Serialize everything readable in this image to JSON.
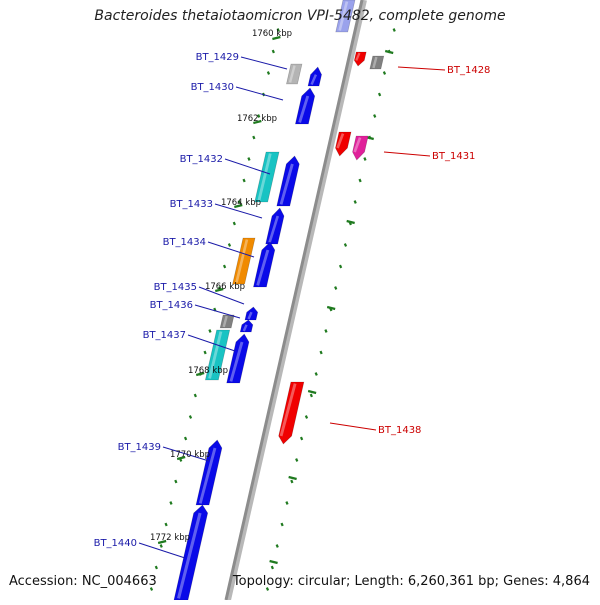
{
  "title": "Bacteroides thetaiotaomicron VPI-5482, complete genome",
  "footer": {
    "accession": "Accession: NC_004663",
    "topology": "Topology: circular; Length: 6,260,361 bp; Genes: 4,864"
  },
  "colors": {
    "backbone": "#8c8c8c",
    "tick": "#1f7a1f",
    "left_label": "#1a1aa8",
    "right_label": "#cc0000",
    "blue": "#0a0ae8",
    "cyan": "#19c3c3",
    "orange": "#f08a00",
    "red": "#f00000",
    "magenta": "#e0209a",
    "gray": "#808080",
    "light_gray": "#b4b4b4",
    "lavender": "#9aa2ec"
  },
  "scale_labels": [
    "1760 kbp",
    "1762 kbp",
    "1764 kbp",
    "1766 kbp",
    "1768 kbp",
    "1770 kbp",
    "1772 kbp"
  ],
  "genes": [
    {
      "name": "BT_1428",
      "side": "right"
    },
    {
      "name": "BT_1429",
      "side": "left"
    },
    {
      "name": "BT_1430",
      "side": "left"
    },
    {
      "name": "BT_1431",
      "side": "right"
    },
    {
      "name": "BT_1432",
      "side": "left"
    },
    {
      "name": "BT_1433",
      "side": "left"
    },
    {
      "name": "BT_1434",
      "side": "left"
    },
    {
      "name": "BT_1435",
      "side": "left"
    },
    {
      "name": "BT_1436",
      "side": "left"
    },
    {
      "name": "BT_1437",
      "side": "left"
    },
    {
      "name": "BT_1438",
      "side": "right"
    },
    {
      "name": "BT_1439",
      "side": "left"
    },
    {
      "name": "BT_1440",
      "side": "left"
    }
  ]
}
